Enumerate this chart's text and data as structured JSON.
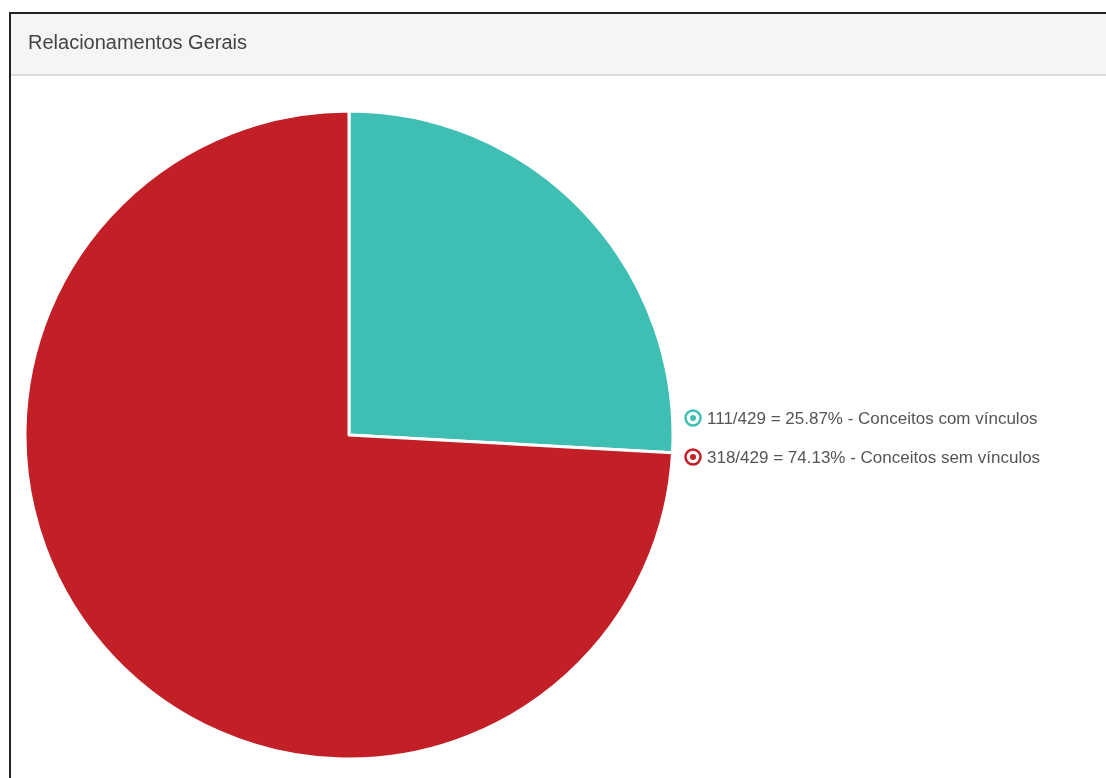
{
  "chart_data": {
    "type": "pie",
    "title": "Relacionamentos Gerais",
    "categories": [
      "111/429 = 25.87% - Conceitos com vínculos",
      "318/429 = 74.13% - Conceitos sem vínculos"
    ],
    "values": [
      111,
      318
    ],
    "colors": [
      "#3fbfb3",
      "#c21f26"
    ],
    "legend": "right"
  }
}
